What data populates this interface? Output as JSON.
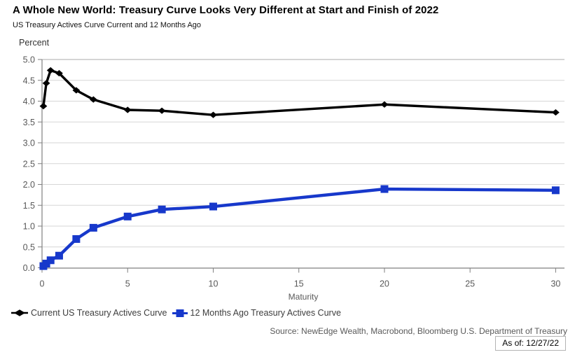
{
  "header": {
    "title": "A Whole New World: Treasury Curve Looks Very Different at Start and Finish of 2022",
    "subtitle": "US Treasury Actives Curve Current and 12 Months Ago"
  },
  "chart_data": {
    "type": "line",
    "title": "A Whole New World: Treasury Curve Looks Very Different at Start and Finish of 2022",
    "subtitle": "US Treasury Actives Curve Current and 12 Months Ago",
    "xlabel": "Maturity",
    "ylabel": "Percent",
    "xlim": [
      0,
      30
    ],
    "ylim": [
      0,
      5
    ],
    "xticks": [
      0,
      5,
      10,
      15,
      20,
      25,
      30
    ],
    "yticks": [
      0.0,
      0.5,
      1.0,
      1.5,
      2.0,
      2.5,
      3.0,
      3.5,
      4.0,
      4.5,
      5.0
    ],
    "grid": true,
    "legend_position": "bottom-left",
    "x": [
      0.08,
      0.25,
      0.5,
      1,
      2,
      3,
      5,
      7,
      10,
      20,
      30
    ],
    "series": [
      {
        "name": "Current US Treasury Actives Curve",
        "color": "#000000",
        "marker": "diamond",
        "values": [
          3.88,
          4.43,
          4.74,
          4.67,
          4.26,
          4.04,
          3.79,
          3.77,
          3.67,
          3.92,
          3.73
        ]
      },
      {
        "name": "12 Months Ago Treasury Actives Curve",
        "color": "#1738cb",
        "marker": "square",
        "values": [
          0.04,
          0.1,
          0.18,
          0.29,
          0.69,
          0.96,
          1.23,
          1.4,
          1.47,
          1.89,
          1.86
        ]
      }
    ],
    "colors": {
      "grid": "#d6d6d6",
      "top_grid": "#ababab",
      "axis": "#7f7f7f",
      "tick_text": "#595959"
    }
  },
  "footer": {
    "source": "Source: NewEdge Wealth, Macrobond, Bloomberg U.S. Department of Treasury",
    "as_of": "As of: 12/27/22"
  }
}
